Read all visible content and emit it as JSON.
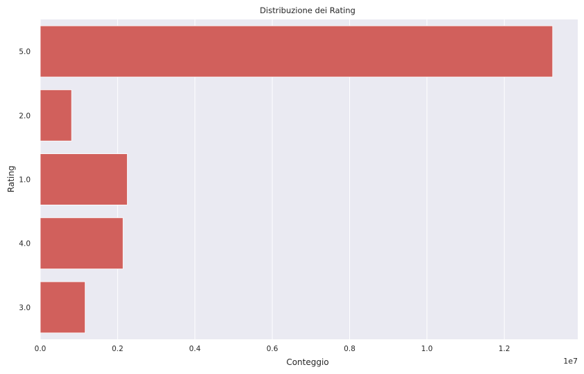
{
  "chart_data": {
    "type": "bar",
    "orientation": "horizontal",
    "title": "Distribuzione dei Rating",
    "xlabel": "Conteggio",
    "ylabel": "Rating",
    "x_multiplier_label": "1e7",
    "categories": [
      "5.0",
      "2.0",
      "1.0",
      "4.0",
      "3.0"
    ],
    "values": [
      13250000,
      810000,
      2250000,
      2140000,
      1160000
    ],
    "xlim": [
      0,
      13900000
    ],
    "x_ticks": [
      {
        "value": 0,
        "label": "0.0"
      },
      {
        "value": 2000000,
        "label": "0.2"
      },
      {
        "value": 4000000,
        "label": "0.4"
      },
      {
        "value": 6000000,
        "label": "0.6"
      },
      {
        "value": 8000000,
        "label": "0.8"
      },
      {
        "value": 10000000,
        "label": "1.0"
      },
      {
        "value": 12000000,
        "label": "1.2"
      }
    ],
    "bar_color": "#d1605c",
    "plot_background": "#eaeaf2",
    "grid": "vertical"
  }
}
